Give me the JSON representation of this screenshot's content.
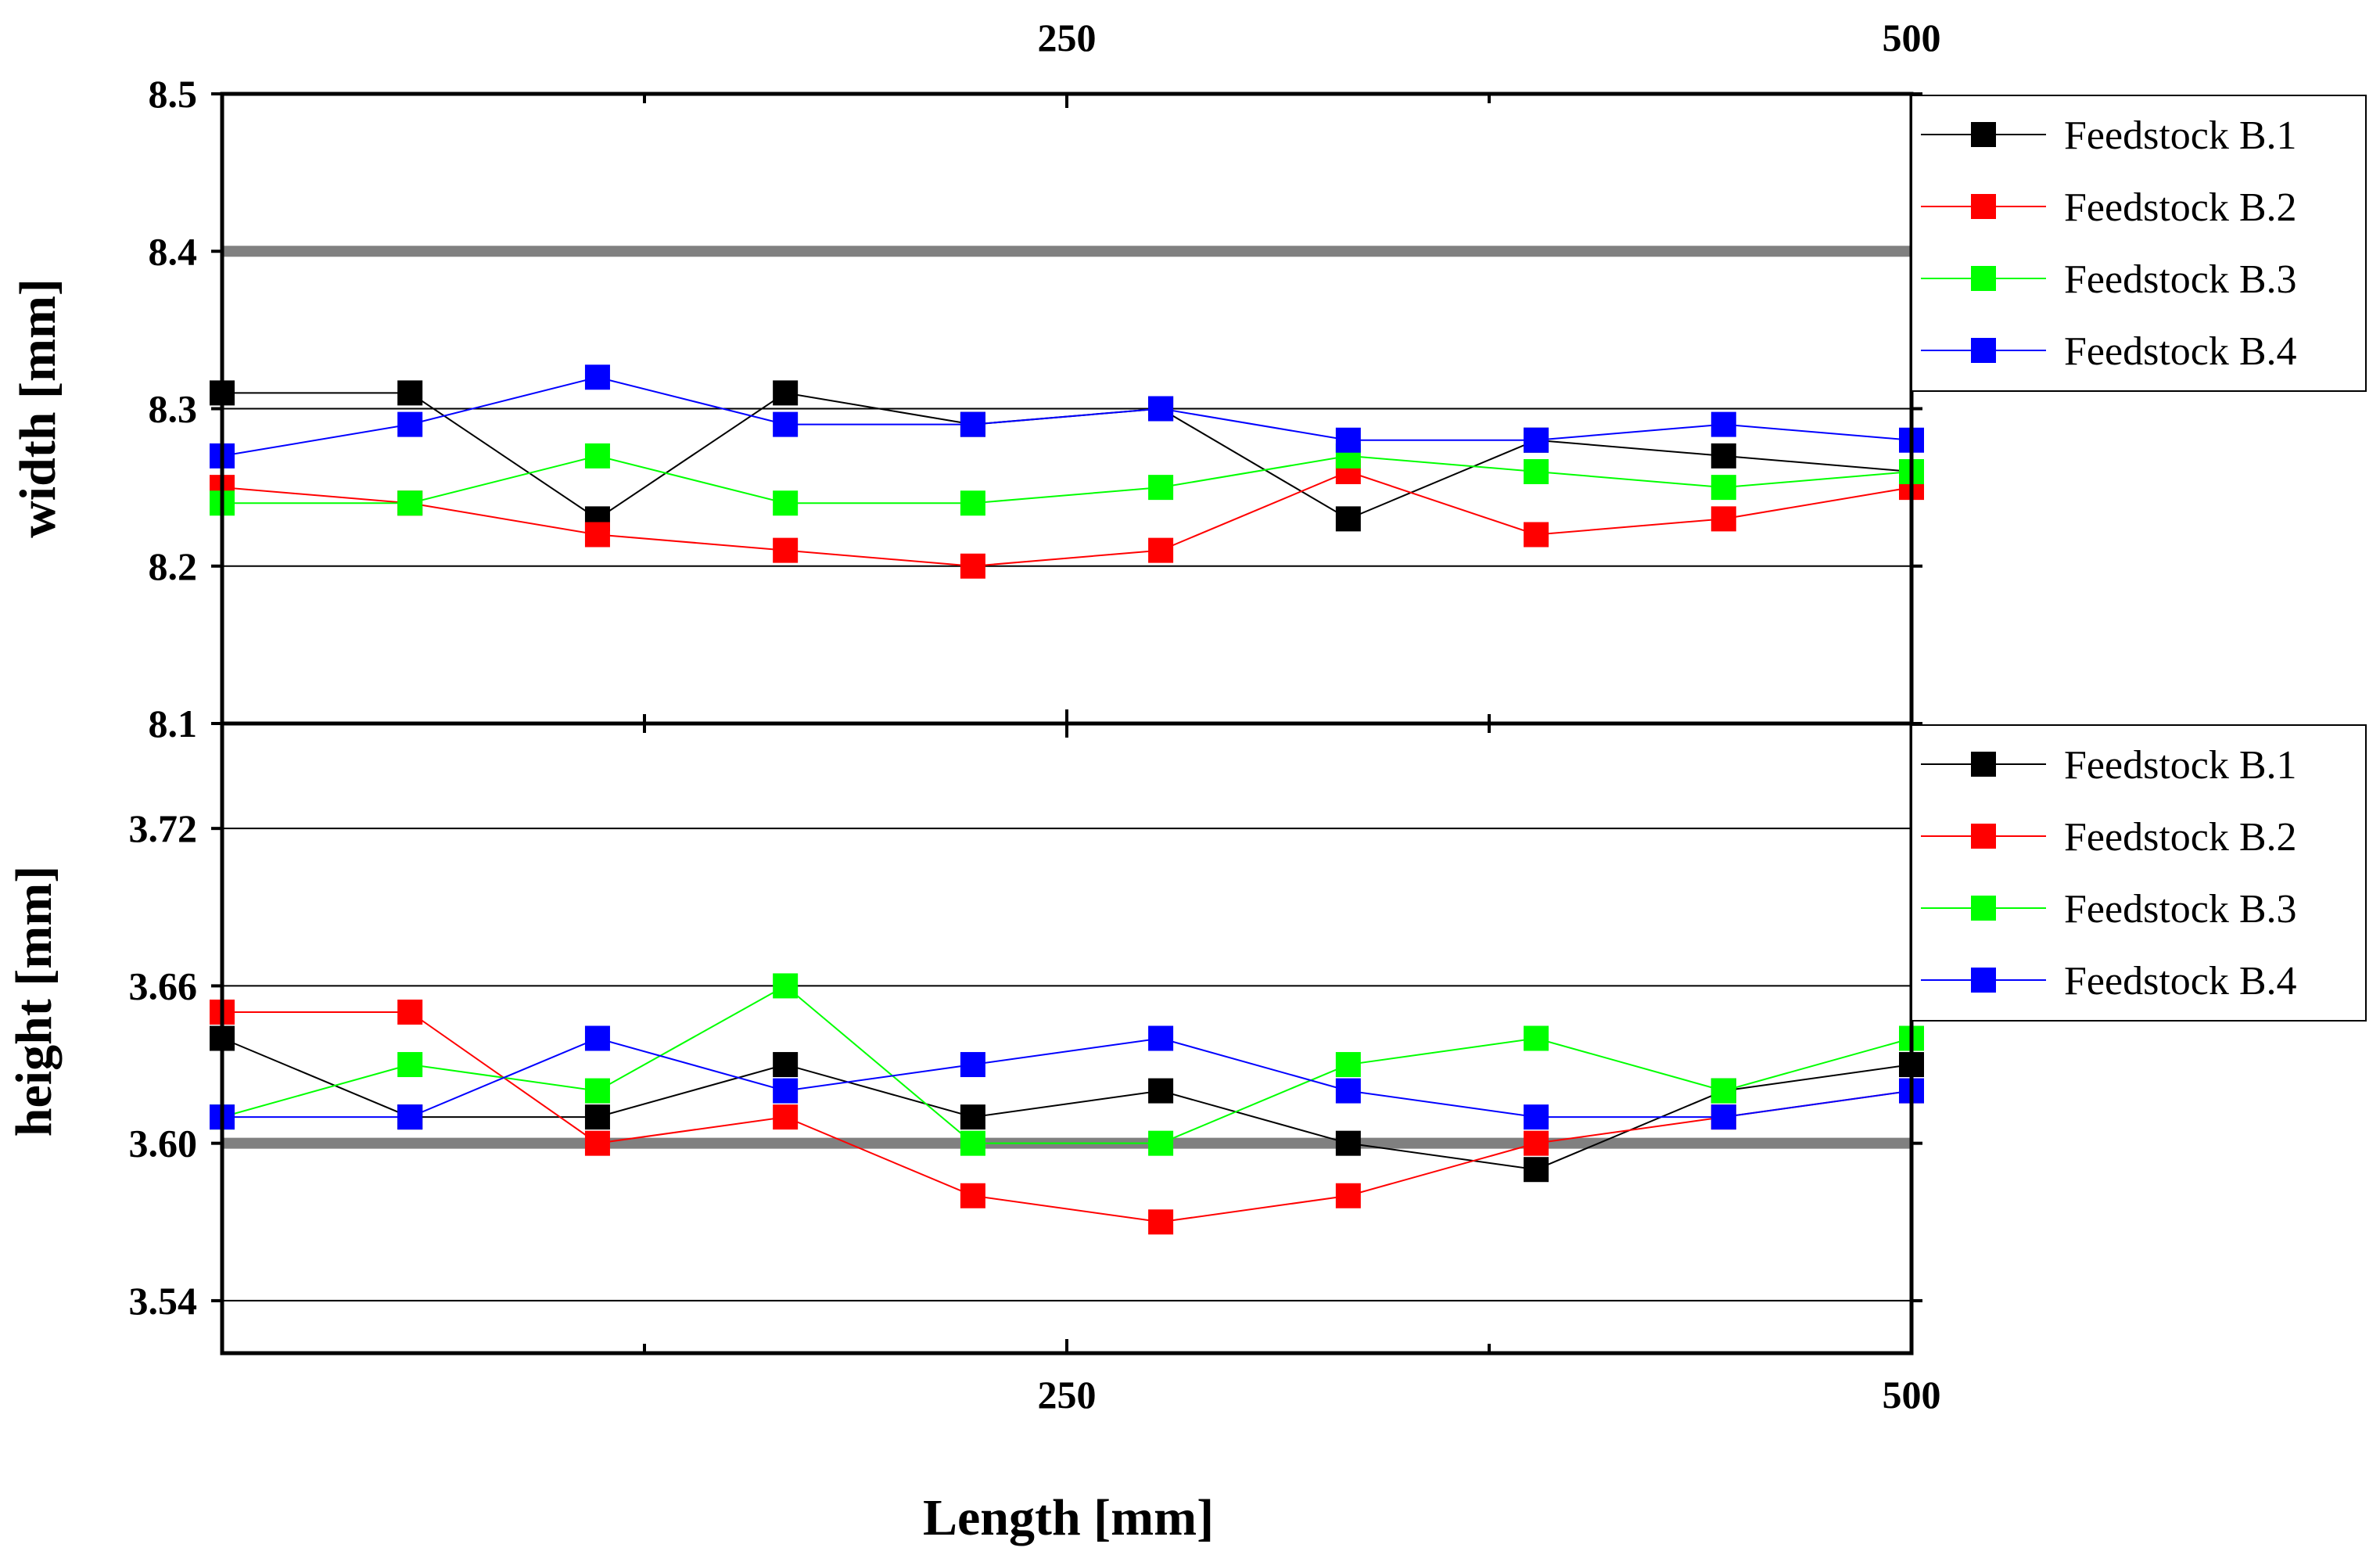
{
  "chart_data": [
    {
      "id": "width",
      "type": "line",
      "ylabel": "width [mm]",
      "xlabel": "Length [mm]",
      "xlim": [
        0,
        500
      ],
      "ylim": [
        8.1,
        8.5
      ],
      "x_tick_labels": [
        "250",
        "500"
      ],
      "x_tick_values": [
        250,
        500
      ],
      "y_ticks": [
        8.1,
        8.2,
        8.3,
        8.4,
        8.5
      ],
      "y_tick_labels": [
        "8.1",
        "8.2",
        "8.3",
        "8.4",
        "8.5"
      ],
      "gridlines": [
        8.2,
        8.3
      ],
      "reference_line": 8.4,
      "x": [
        0,
        55.6,
        111.1,
        166.7,
        222.2,
        277.8,
        333.3,
        388.9,
        444.4,
        500
      ],
      "series": [
        {
          "name": "Feedstock B.1",
          "color": "#000000",
          "values": [
            8.31,
            8.31,
            8.23,
            8.31,
            8.29,
            8.3,
            8.23,
            8.28,
            8.27,
            8.26
          ]
        },
        {
          "name": "Feedstock B.2",
          "color": "#ff0000",
          "values": [
            8.25,
            8.24,
            8.22,
            8.21,
            8.2,
            8.21,
            8.26,
            8.22,
            8.23,
            8.25
          ]
        },
        {
          "name": "Feedstock B.3",
          "color": "#00ff00",
          "values": [
            8.24,
            8.24,
            8.27,
            8.24,
            8.24,
            8.25,
            8.27,
            8.26,
            8.25,
            8.26
          ]
        },
        {
          "name": "Feedstock B.4",
          "color": "#0000ff",
          "values": [
            8.27,
            8.29,
            8.32,
            8.29,
            8.29,
            8.3,
            8.28,
            8.28,
            8.29,
            8.28
          ]
        }
      ]
    },
    {
      "id": "height",
      "type": "line",
      "ylabel": "height [mm]",
      "xlabel": "Length [mm]",
      "xlim": [
        0,
        500
      ],
      "ylim": [
        3.52,
        3.76
      ],
      "x_tick_labels": [
        "250",
        "500"
      ],
      "x_tick_values": [
        250,
        500
      ],
      "y_ticks": [
        3.54,
        3.6,
        3.66,
        3.72
      ],
      "y_tick_labels": [
        "3.54",
        "3.60",
        "3.66",
        "3.72"
      ],
      "gridlines": [
        3.54,
        3.66,
        3.72
      ],
      "reference_line": 3.6,
      "x": [
        0,
        55.6,
        111.1,
        166.7,
        222.2,
        277.8,
        333.3,
        388.9,
        444.4,
        500
      ],
      "series": [
        {
          "name": "Feedstock B.1",
          "color": "#000000",
          "values": [
            3.64,
            3.61,
            3.61,
            3.63,
            3.61,
            3.62,
            3.6,
            3.59,
            3.62,
            3.63
          ]
        },
        {
          "name": "Feedstock B.2",
          "color": "#ff0000",
          "values": [
            3.65,
            3.65,
            3.6,
            3.61,
            3.58,
            3.57,
            3.58,
            3.6,
            3.61,
            3.62
          ]
        },
        {
          "name": "Feedstock B.3",
          "color": "#00ff00",
          "values": [
            3.61,
            3.63,
            3.62,
            3.66,
            3.6,
            3.6,
            3.63,
            3.64,
            3.62,
            3.64
          ]
        },
        {
          "name": "Feedstock B.4",
          "color": "#0000ff",
          "values": [
            3.61,
            3.61,
            3.64,
            3.62,
            3.63,
            3.64,
            3.62,
            3.61,
            3.61,
            3.62
          ]
        }
      ]
    }
  ],
  "shared_xlabel": "Length [mm]",
  "reference_line_color": "#808080",
  "gridline_color": "#000000"
}
